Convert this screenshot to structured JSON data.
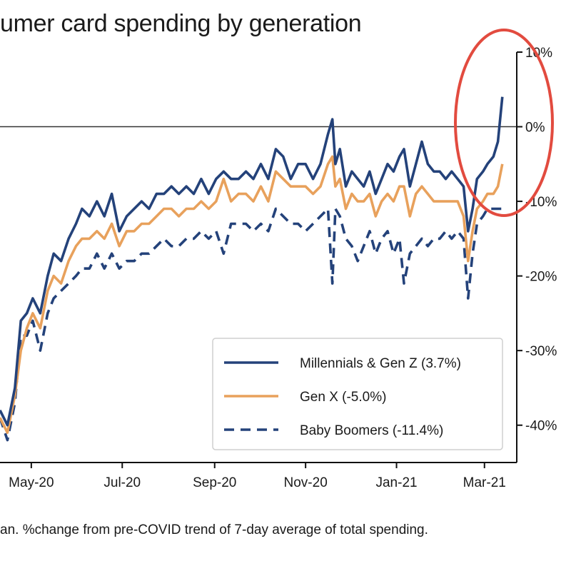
{
  "title": "umer card spending by generation",
  "footnote": "an. %change from pre-COVID trend of 7-day average of total spending.",
  "colors": {
    "millennials": "#24427a",
    "genx": "#e8a15c",
    "boomers": "#24427a",
    "zero_line": "#333333",
    "annotation": "#e24b3f",
    "axis": "#111111"
  },
  "chart_data": {
    "type": "line",
    "title": "umer card spending by generation",
    "ylabel": "",
    "xlabel": "",
    "x_start": "2020-04-10",
    "x_end": "2021-03-15",
    "ylim": [
      -45,
      10
    ],
    "y_ticks": [
      10,
      0,
      -10,
      -20,
      -30,
      -40
    ],
    "y_tick_labels": [
      "10%",
      "0%",
      "-10%",
      "-20%",
      "-30%",
      "-40%"
    ],
    "x_ticks": [
      "2020-05-01",
      "2020-07-01",
      "2020-09-01",
      "2020-11-01",
      "2021-01-01",
      "2021-03-01"
    ],
    "x_tick_labels": [
      "May-20",
      "Jul-20",
      "Sep-20",
      "Nov-20",
      "Jan-21",
      "Mar-21"
    ],
    "grid": false,
    "legend_position": "bottom-right",
    "annotation": "red ellipse around March 2021 values",
    "series": [
      {
        "name": "Millennials & Gen Z (3.7%)",
        "style": "solid",
        "x": [
          "2020-04-10",
          "2020-04-15",
          "2020-04-20",
          "2020-04-24",
          "2020-04-28",
          "2020-05-02",
          "2020-05-07",
          "2020-05-12",
          "2020-05-16",
          "2020-05-21",
          "2020-05-26",
          "2020-05-31",
          "2020-06-04",
          "2020-06-09",
          "2020-06-14",
          "2020-06-19",
          "2020-06-24",
          "2020-06-29",
          "2020-07-04",
          "2020-07-09",
          "2020-07-14",
          "2020-07-19",
          "2020-07-24",
          "2020-07-29",
          "2020-08-03",
          "2020-08-08",
          "2020-08-13",
          "2020-08-18",
          "2020-08-23",
          "2020-08-28",
          "2020-09-02",
          "2020-09-07",
          "2020-09-12",
          "2020-09-17",
          "2020-09-22",
          "2020-09-27",
          "2020-10-02",
          "2020-10-07",
          "2020-10-12",
          "2020-10-17",
          "2020-10-22",
          "2020-10-27",
          "2020-11-01",
          "2020-11-06",
          "2020-11-11",
          "2020-11-16",
          "2020-11-19",
          "2020-11-21",
          "2020-11-24",
          "2020-11-28",
          "2020-12-02",
          "2020-12-06",
          "2020-12-10",
          "2020-12-14",
          "2020-12-18",
          "2020-12-22",
          "2020-12-26",
          "2020-12-30",
          "2021-01-03",
          "2021-01-06",
          "2021-01-10",
          "2021-01-14",
          "2021-01-18",
          "2021-01-22",
          "2021-01-26",
          "2021-01-30",
          "2021-02-03",
          "2021-02-07",
          "2021-02-11",
          "2021-02-15",
          "2021-02-18",
          "2021-02-21",
          "2021-02-24",
          "2021-02-28",
          "2021-03-03",
          "2021-03-07",
          "2021-03-10",
          "2021-03-13"
        ],
        "values": [
          -38,
          -40,
          -35,
          -26,
          -25,
          -23,
          -25,
          -20,
          -17,
          -18,
          -15,
          -13,
          -11,
          -12,
          -10,
          -12,
          -9,
          -14,
          -12,
          -11,
          -10,
          -11,
          -9,
          -9,
          -8,
          -9,
          -8,
          -9,
          -7,
          -9,
          -7,
          -6,
          -7,
          -7,
          -6,
          -7,
          -5,
          -7,
          -3,
          -4,
          -7,
          -5,
          -5,
          -7,
          -5,
          -1,
          1,
          -5,
          -3,
          -8,
          -6,
          -7,
          -8,
          -6,
          -9,
          -7,
          -5,
          -6,
          -4,
          -3,
          -8,
          -5,
          -2,
          -5,
          -6,
          -6,
          -7,
          -6,
          -7,
          -8,
          -14,
          -11,
          -7,
          -6,
          -5,
          -4,
          -2,
          4
        ]
      },
      {
        "name": "Gen X (-5.0%)",
        "style": "solid",
        "x": [
          "2020-04-10",
          "2020-04-15",
          "2020-04-20",
          "2020-04-24",
          "2020-04-28",
          "2020-05-02",
          "2020-05-07",
          "2020-05-12",
          "2020-05-16",
          "2020-05-21",
          "2020-05-26",
          "2020-05-31",
          "2020-06-04",
          "2020-06-09",
          "2020-06-14",
          "2020-06-19",
          "2020-06-24",
          "2020-06-29",
          "2020-07-04",
          "2020-07-09",
          "2020-07-14",
          "2020-07-19",
          "2020-07-24",
          "2020-07-29",
          "2020-08-03",
          "2020-08-08",
          "2020-08-13",
          "2020-08-18",
          "2020-08-23",
          "2020-08-28",
          "2020-09-02",
          "2020-09-07",
          "2020-09-12",
          "2020-09-17",
          "2020-09-22",
          "2020-09-27",
          "2020-10-02",
          "2020-10-07",
          "2020-10-12",
          "2020-10-17",
          "2020-10-22",
          "2020-10-27",
          "2020-11-01",
          "2020-11-06",
          "2020-11-11",
          "2020-11-16",
          "2020-11-19",
          "2020-11-21",
          "2020-11-24",
          "2020-11-28",
          "2020-12-02",
          "2020-12-06",
          "2020-12-10",
          "2020-12-14",
          "2020-12-18",
          "2020-12-22",
          "2020-12-26",
          "2020-12-30",
          "2021-01-03",
          "2021-01-06",
          "2021-01-10",
          "2021-01-14",
          "2021-01-18",
          "2021-01-22",
          "2021-01-26",
          "2021-01-30",
          "2021-02-03",
          "2021-02-07",
          "2021-02-11",
          "2021-02-15",
          "2021-02-18",
          "2021-02-21",
          "2021-02-24",
          "2021-02-28",
          "2021-03-03",
          "2021-03-07",
          "2021-03-10",
          "2021-03-13"
        ],
        "values": [
          -39,
          -41,
          -36,
          -30,
          -27,
          -25,
          -27,
          -22,
          -20,
          -21,
          -18,
          -16,
          -15,
          -15,
          -14,
          -15,
          -13,
          -16,
          -14,
          -14,
          -13,
          -13,
          -12,
          -11,
          -11,
          -12,
          -11,
          -11,
          -10,
          -11,
          -10,
          -7,
          -10,
          -9,
          -9,
          -10,
          -8,
          -10,
          -6,
          -7,
          -8,
          -8,
          -8,
          -9,
          -8,
          -5,
          -4,
          -8,
          -7,
          -11,
          -9,
          -10,
          -10,
          -9,
          -12,
          -10,
          -9,
          -10,
          -8,
          -8,
          -12,
          -9,
          -8,
          -9,
          -10,
          -10,
          -10,
          -10,
          -10,
          -12,
          -18,
          -14,
          -11,
          -10,
          -9,
          -9,
          -8,
          -5
        ]
      },
      {
        "name": "Baby Boomers (-11.4%)",
        "style": "dashed",
        "x": [
          "2020-04-10",
          "2020-04-15",
          "2020-04-20",
          "2020-04-24",
          "2020-04-28",
          "2020-05-02",
          "2020-05-07",
          "2020-05-12",
          "2020-05-16",
          "2020-05-21",
          "2020-05-26",
          "2020-05-31",
          "2020-06-04",
          "2020-06-09",
          "2020-06-14",
          "2020-06-19",
          "2020-06-24",
          "2020-06-29",
          "2020-07-04",
          "2020-07-09",
          "2020-07-14",
          "2020-07-19",
          "2020-07-24",
          "2020-07-29",
          "2020-08-03",
          "2020-08-08",
          "2020-08-13",
          "2020-08-18",
          "2020-08-23",
          "2020-08-28",
          "2020-09-02",
          "2020-09-07",
          "2020-09-12",
          "2020-09-17",
          "2020-09-22",
          "2020-09-27",
          "2020-10-02",
          "2020-10-07",
          "2020-10-12",
          "2020-10-17",
          "2020-10-22",
          "2020-10-27",
          "2020-11-01",
          "2020-11-06",
          "2020-11-11",
          "2020-11-16",
          "2020-11-19",
          "2020-11-21",
          "2020-11-24",
          "2020-11-28",
          "2020-12-02",
          "2020-12-06",
          "2020-12-10",
          "2020-12-14",
          "2020-12-18",
          "2020-12-22",
          "2020-12-26",
          "2020-12-30",
          "2021-01-03",
          "2021-01-06",
          "2021-01-10",
          "2021-01-14",
          "2021-01-18",
          "2021-01-22",
          "2021-01-26",
          "2021-01-30",
          "2021-02-03",
          "2021-02-07",
          "2021-02-11",
          "2021-02-15",
          "2021-02-18",
          "2021-02-21",
          "2021-02-24",
          "2021-02-28",
          "2021-03-03",
          "2021-03-07",
          "2021-03-10",
          "2021-03-13"
        ],
        "values": [
          -39,
          -42,
          -37,
          -28,
          -28,
          -26,
          -30,
          -25,
          -23,
          -22,
          -21,
          -20,
          -19,
          -19,
          -17,
          -19,
          -17,
          -19,
          -18,
          -18,
          -17,
          -17,
          -16,
          -15,
          -16,
          -16,
          -15,
          -15,
          -14,
          -15,
          -14,
          -17,
          -13,
          -13,
          -13,
          -14,
          -13,
          -14,
          -11,
          -12,
          -13,
          -13,
          -14,
          -13,
          -12,
          -11,
          -21,
          -11,
          -12,
          -15,
          -16,
          -18,
          -16,
          -14,
          -17,
          -15,
          -14,
          -17,
          -15,
          -21,
          -17,
          -16,
          -15,
          -16,
          -15,
          -15,
          -14,
          -15,
          -14,
          -15,
          -23,
          -17,
          -13,
          -12,
          -11,
          -11,
          -11,
          -11
        ]
      }
    ]
  }
}
